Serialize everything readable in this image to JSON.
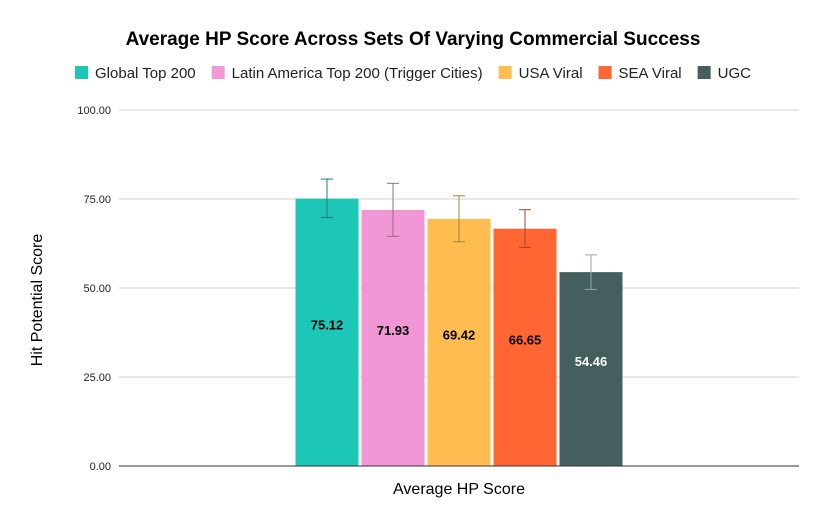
{
  "chart_data": {
    "type": "bar",
    "title": "Average HP Score Across Sets Of Varying Commercial Success",
    "xlabel": "Average HP Score",
    "ylabel": "Hit Potential Score",
    "categories": [
      "Average HP Score"
    ],
    "ylim": [
      0,
      100
    ],
    "yticks": [
      "0.00",
      "25.00",
      "50.00",
      "75.00",
      "100.00"
    ],
    "grid": true,
    "legend_position": "top",
    "series": [
      {
        "name": "Global Top 200",
        "value": 75.12,
        "label": "75.12",
        "error_low": 69.8,
        "error_high": 80.6,
        "color": "#1cc7b8",
        "label_color": "#000000",
        "error_color": "#1b7f79"
      },
      {
        "name": "Latin America Top 200 (Trigger Cities)",
        "value": 71.93,
        "label": "71.93",
        "error_low": 64.5,
        "error_high": 79.4,
        "color": "#f297d6",
        "label_color": "#000000",
        "error_color": "#9b6a8a"
      },
      {
        "name": "USA Viral",
        "value": 69.42,
        "label": "69.42",
        "error_low": 63.0,
        "error_high": 75.9,
        "color": "#ffbd4f",
        "label_color": "#000000",
        "error_color": "#a47f3c"
      },
      {
        "name": "SEA Viral",
        "value": 66.65,
        "label": "66.65",
        "error_low": 61.4,
        "error_high": 72.0,
        "color": "#ff6633",
        "label_color": "#000000",
        "error_color": "#9c4a2f"
      },
      {
        "name": "UGC",
        "value": 54.46,
        "label": "54.46",
        "error_low": 49.6,
        "error_high": 59.3,
        "color": "#455f5f",
        "label_color": "#ffffff",
        "error_color": "#9aa3a3"
      }
    ]
  }
}
